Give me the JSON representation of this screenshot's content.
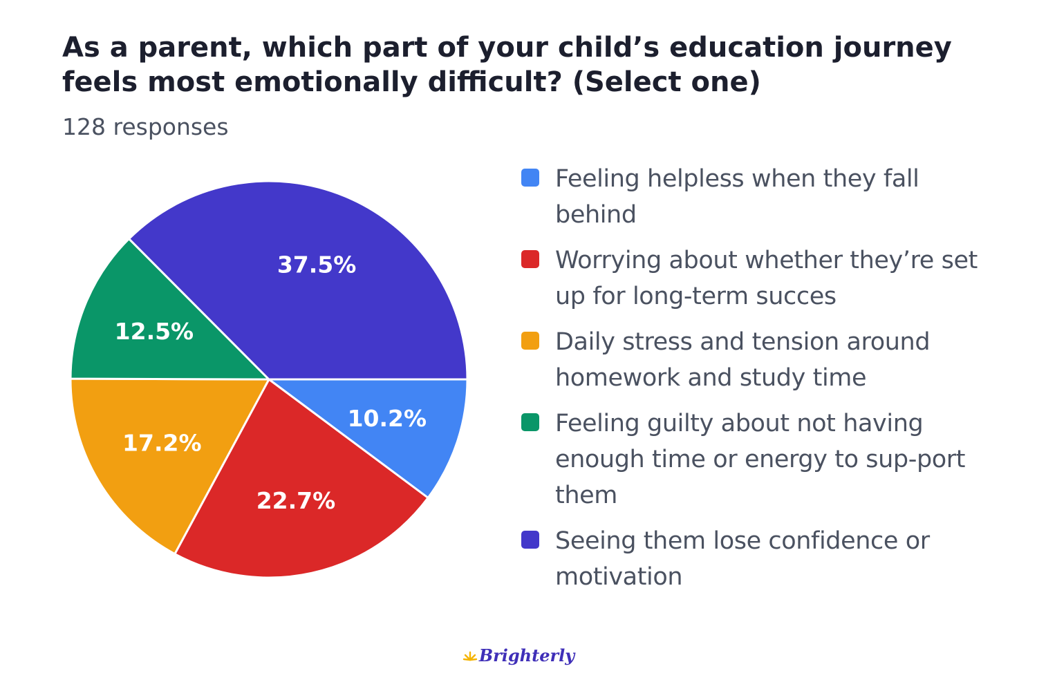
{
  "header": {
    "title": "As a parent, which part of your child’s education journey feels most emotionally difficult? (Select one)",
    "subtitle": "128 responses"
  },
  "chart_data": {
    "type": "pie",
    "title": "As a parent, which part of your child’s education journey feels most emotionally difficult? (Select one)",
    "subtitle": "128 responses",
    "legend_position": "right",
    "slices": [
      {
        "label": "Feeling helpless when they fall behind",
        "value": 10.2,
        "display": "10.2%",
        "color": "#4285f4"
      },
      {
        "label": "Worrying about whether they’re set up for long-term succes",
        "value": 22.7,
        "display": "22.7%",
        "color": "#db2828"
      },
      {
        "label": "Daily stress and tension around homework and study time",
        "value": 17.2,
        "display": "17.2%",
        "color": "#f29f11"
      },
      {
        "label": "Feeling guilty about not having enough time or energy to sup-port them",
        "value": 12.5,
        "display": "12.5%",
        "color": "#0a9668"
      },
      {
        "label": "Seeing them lose confidence or motivation",
        "value": 37.5,
        "display": "37.5%",
        "color": "#4338ca"
      }
    ]
  },
  "legend": {
    "items": [
      {
        "label": "Feeling helpless when they fall behind",
        "color": "#4285f4"
      },
      {
        "label": "Worrying about whether they’re set up for long-term succes",
        "color": "#db2828"
      },
      {
        "label": "Daily stress and tension around homework and study time",
        "color": "#f29f11"
      },
      {
        "label": "Feeling guilty about not having enough time or energy to sup-port them",
        "color": "#0a9668"
      },
      {
        "label": "Seeing them lose confidence or motivation",
        "color": "#4338ca"
      }
    ]
  },
  "footer": {
    "logo_text": "Brighterly",
    "logo_icon": "sun-rays-icon",
    "logo_color": "#3f2fb8",
    "logo_accent": "#f5b400"
  }
}
